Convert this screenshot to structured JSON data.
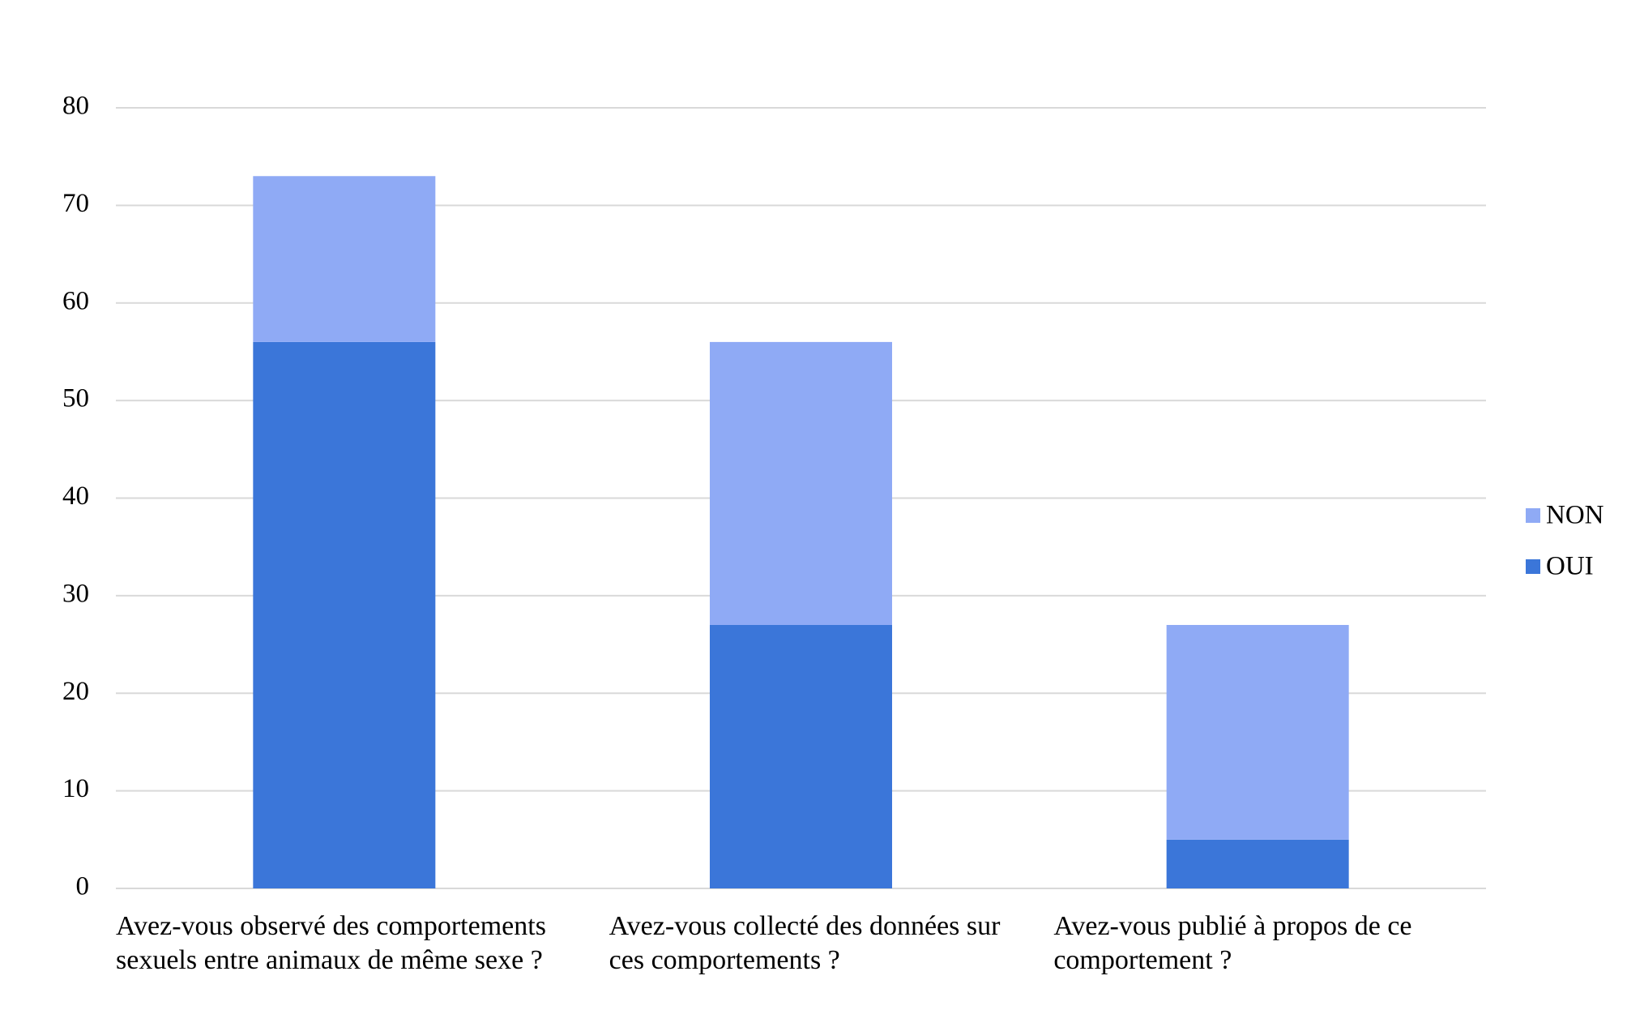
{
  "chart_data": {
    "type": "stacked_bar",
    "categories": [
      "Avez-vous observé des comportements sexuels entre animaux de même sexe ?",
      "Avez-vous collecté des données sur ces comportements ?",
      "Avez-vous publié à propos de ce comportement ?"
    ],
    "series": [
      {
        "name": "OUI",
        "color": "#3b76d9",
        "values": [
          56,
          27,
          5
        ]
      },
      {
        "name": "NON",
        "color": "#8faaf5",
        "values": [
          17,
          29,
          22
        ]
      }
    ],
    "ylim": [
      0,
      80
    ],
    "yticks": [
      0,
      10,
      20,
      30,
      40,
      50,
      60,
      70,
      80
    ],
    "grid": true,
    "legend": "right"
  }
}
